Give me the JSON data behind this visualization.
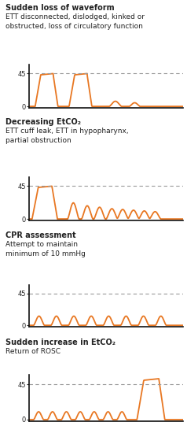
{
  "title1": "Sudden loss of waveform",
  "desc1a": "ETT disconnected, dislodged, kinked or",
  "desc1b": "obstructed, loss of circulatory function",
  "title2": "Decreasing EtCO₂",
  "desc2a": "ETT cuff leak, ETT in hypopharynx,",
  "desc2b": "partial obstruction",
  "title3": "CPR assessment",
  "desc3a": "Attempt to maintain",
  "desc3b": "minimum of 10 mmHg",
  "title4": "Sudden increase in EtCO₂",
  "desc4a": "Return of ROSC",
  "orange": "#E87722",
  "gray_dashed": "#999999",
  "bg": "#ffffff",
  "text_color": "#222222",
  "title_fontsize": 7.0,
  "desc_fontsize": 6.5,
  "tick_fontsize": 6.0
}
